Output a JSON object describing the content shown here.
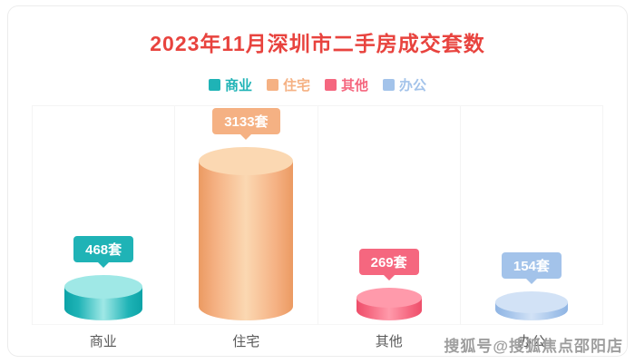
{
  "title_color": "#e8433e",
  "watermark": "搜狐号@搜狐焦点邵阳店",
  "chart_data": {
    "type": "bar",
    "title": "2023年11月深圳市二手房成交套数",
    "categories": [
      "商业",
      "住宅",
      "其他",
      "办公"
    ],
    "values": [
      468,
      3133,
      269,
      154
    ],
    "unit": "套",
    "data_labels": [
      "468套",
      "3133套",
      "269套",
      "154套"
    ],
    "legend": [
      "商业",
      "住宅",
      "其他",
      "办公"
    ],
    "legend_position": "top",
    "ylim": [
      0,
      3300
    ],
    "grid": false,
    "colors": {
      "main": [
        "#1fb3b6",
        "#f5b183",
        "#f5677f",
        "#a3c3ea"
      ],
      "light": [
        "#9fe8e6",
        "#fbd8b2",
        "#ff9aab",
        "#d2e2f6"
      ],
      "edge": [
        "#0ca3a7",
        "#eb9a62",
        "#ee4e6a",
        "#8fb4e3"
      ]
    }
  }
}
